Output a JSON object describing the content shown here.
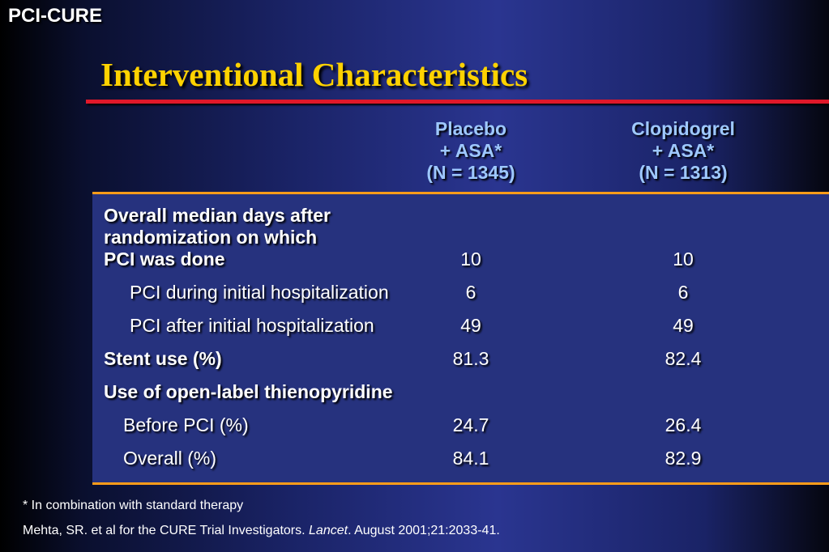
{
  "slide_label": "PCI-CURE",
  "title": "Interventional Characteristics",
  "columns": [
    {
      "line1": "Placebo",
      "line2": "+ ASA*",
      "line3": "(N = 1345)"
    },
    {
      "line1": "Clopidogrel",
      "line2": "+ ASA*",
      "line3": "(N = 1313)"
    }
  ],
  "rows": [
    {
      "label_lines": [
        "Overall median days after",
        "randomization on which",
        "PCI was done"
      ],
      "placebo": "10",
      "clopidogrel": "10"
    },
    {
      "label": "PCI during initial hospitalization",
      "placebo": "6",
      "clopidogrel": "6"
    },
    {
      "label": "PCI after initial hospitalization",
      "placebo": "49",
      "clopidogrel": "49"
    },
    {
      "label": "Stent use (%)",
      "placebo": "81.3",
      "clopidogrel": "82.4"
    },
    {
      "label": "Use of open-label thienopyridine",
      "placebo": "",
      "clopidogrel": ""
    },
    {
      "label": "Before PCI (%)",
      "placebo": "24.7",
      "clopidogrel": "26.4"
    },
    {
      "label": "Overall (%)",
      "placebo": "84.1",
      "clopidogrel": "82.9"
    }
  ],
  "footnote": "* In combination with standard therapy",
  "citation": {
    "before": "Mehta, SR. et al for the CURE Trial Investigators. ",
    "journal": "Lancet",
    "after": ". August 2001;21:2033-41."
  }
}
